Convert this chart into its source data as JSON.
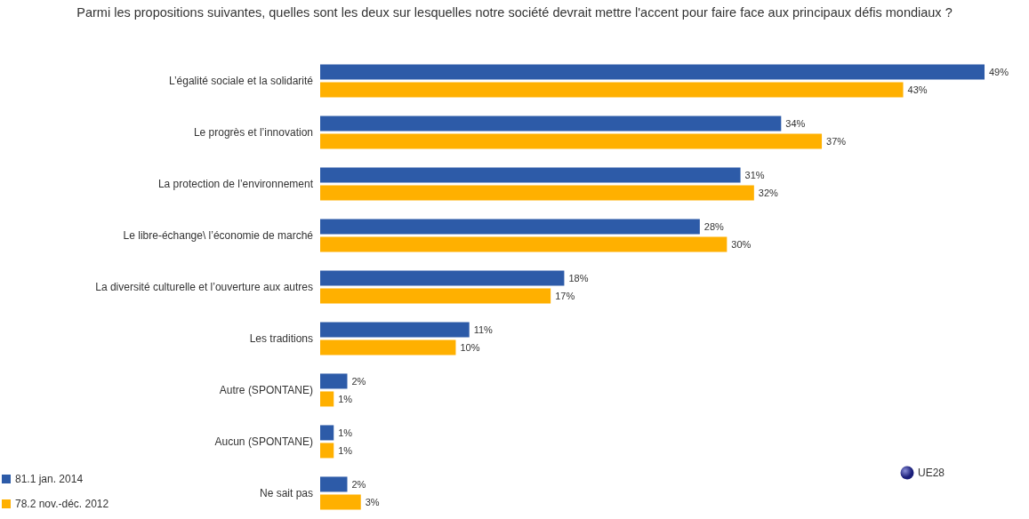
{
  "chart_data": {
    "type": "bar",
    "orientation": "horizontal",
    "title": "Parmi les propositions suivantes, quelles sont les deux sur lesquelles notre société devrait mettre l'accent pour faire face aux principaux défis mondiaux ?",
    "categories": [
      "L’égalité sociale et la solidarité",
      "Le progrès et l’innovation",
      "La protection de l’environnement",
      "Le libre-échange\\ l’économie de marché",
      "La diversité culturelle et l’ouverture aux autres",
      "Les traditions",
      "Autre (SPONTANE)",
      "Aucun (SPONTANE)",
      "Ne sait pas"
    ],
    "series": [
      {
        "name": "81.1 jan. 2014",
        "color": "#2d5ba8",
        "values": [
          49,
          34,
          31,
          28,
          18,
          11,
          2,
          1,
          2
        ],
        "value_labels": [
          "49%",
          "34%",
          "31%",
          "28%",
          "18%",
          "11%",
          "2%",
          "1%",
          "2%"
        ]
      },
      {
        "name": "78.2 nov.-déc. 2012",
        "color": "#ffb000",
        "values": [
          43,
          37,
          32,
          30,
          17,
          10,
          1,
          1,
          3
        ],
        "value_labels": [
          "43%",
          "37%",
          "32%",
          "30%",
          "17%",
          "10%",
          "1%",
          "1%",
          "3%"
        ]
      }
    ],
    "legend": "bottom left",
    "annotations": [
      "UE28"
    ]
  }
}
